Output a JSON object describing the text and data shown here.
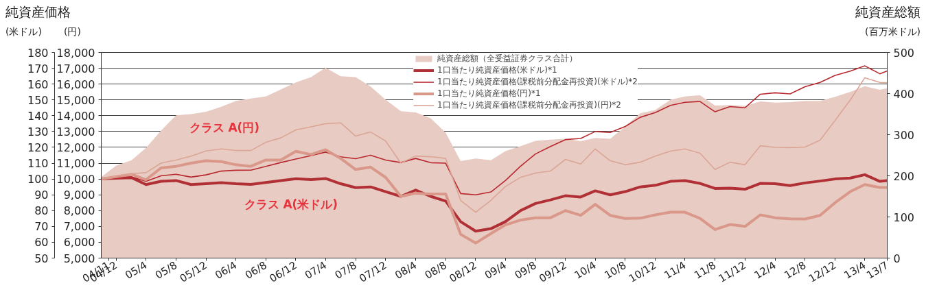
{
  "chart_data": {
    "type": "line",
    "title": "純資産価格",
    "ylabel": "(米ドル)",
    "y2label": "(円)",
    "y3label": "(百万米ドル)",
    "annotations": [
      "純資産総額",
      "クラス A(円)",
      "クラス A(米ドル)"
    ],
    "x": [
      "2004-10",
      "2004-12",
      "2005-02",
      "2005-04",
      "2005-06",
      "2005-08",
      "2005-10",
      "2005-12",
      "2006-02",
      "2006-04",
      "2006-06",
      "2006-08",
      "2006-10",
      "2006-12",
      "2007-02",
      "2007-04",
      "2007-06",
      "2007-08",
      "2007-10",
      "2007-12",
      "2008-02",
      "2008-04",
      "2008-06",
      "2008-08",
      "2008-10",
      "2008-12",
      "2009-02",
      "2009-04",
      "2009-06",
      "2009-08",
      "2009-10",
      "2009-12",
      "2010-02",
      "2010-04",
      "2010-06",
      "2010-08",
      "2010-10",
      "2010-12",
      "2011-02",
      "2011-04",
      "2011-06",
      "2011-08",
      "2011-10",
      "2011-12",
      "2012-02",
      "2012-04",
      "2012-06",
      "2012-08",
      "2012-10",
      "2012-12",
      "2013-02",
      "2013-04",
      "2013-06",
      "2013-07"
    ],
    "series": [
      {
        "name": "純資産総額（全受益証券クラス合計）",
        "type": "area",
        "axis": "y3",
        "color": "#e8cbc3",
        "values": [
          197,
          225,
          238,
          268,
          310,
          347,
          350,
          356,
          368,
          382,
          388,
          393,
          410,
          427,
          440,
          463,
          442,
          440,
          417,
          385,
          357,
          354,
          340,
          305,
          236,
          242,
          238,
          260,
          272,
          285,
          288,
          290,
          284,
          292,
          290,
          320,
          352,
          360,
          385,
          393,
          396,
          371,
          372,
          370,
          381,
          378,
          379,
          382,
          382,
          392,
          404,
          418,
          409,
          413
        ]
      },
      {
        "name": "1口当たり純資産価格(米ドル)*1",
        "color": "#b03035",
        "values": [
          100,
          100.5,
          100.8,
          96.5,
          98.5,
          99,
          96.5,
          97,
          97.7,
          97,
          96.6,
          97.8,
          99,
          100.2,
          99.6,
          100.3,
          97,
          94.5,
          95,
          92,
          89,
          93,
          89,
          86,
          73,
          67,
          68.6,
          73,
          80,
          84.5,
          86.8,
          89.4,
          88.6,
          92.5,
          90,
          92,
          95,
          96,
          98.5,
          99,
          97.2,
          94,
          94.2,
          93.5,
          97.2,
          97,
          95.8,
          97.5,
          98.7,
          100,
          100.6,
          102.7,
          98.5,
          99
        ]
      },
      {
        "name": "1口当たり純資産価格(課税前分配金再投資)(米ドル)*2",
        "color": "#b8282e",
        "values": [
          100,
          100.8,
          101.3,
          98.5,
          102,
          103,
          101.2,
          102.6,
          105,
          105.5,
          105.6,
          108,
          110.4,
          112.6,
          114.8,
          117,
          114,
          112.8,
          115,
          112,
          110.4,
          113,
          110.3,
          110,
          90.8,
          90,
          91.8,
          99,
          108,
          115.8,
          120.5,
          124.9,
          125.6,
          130,
          129.4,
          133.2,
          139,
          142,
          146.5,
          148.5,
          149,
          142.5,
          145.8,
          145,
          153.6,
          154.5,
          153.8,
          158.3,
          161,
          165.5,
          168.2,
          171.5,
          166.5,
          168.3
        ]
      },
      {
        "name": "1口当たり純資産価格(円)*1",
        "axis": "y2",
        "color": "#d9988a",
        "values": [
          10000,
          10150,
          10300,
          9950,
          10700,
          10800,
          11000,
          11150,
          11100,
          10900,
          10800,
          11200,
          11200,
          11750,
          11550,
          11850,
          11300,
          10600,
          10750,
          10100,
          8900,
          9100,
          9050,
          9050,
          6500,
          5950,
          6550,
          7100,
          7400,
          7550,
          7550,
          8000,
          7700,
          8400,
          7700,
          7500,
          7520,
          7730,
          7900,
          7900,
          7510,
          6800,
          7120,
          7000,
          7730,
          7550,
          7480,
          7470,
          7700,
          8500,
          9200,
          9650,
          9460,
          9460
        ]
      },
      {
        "name": "1口当たり純資産価格(課税前分配金再投資)(円)*2",
        "axis": "y2",
        "color": "#dba596",
        "values": [
          10000,
          10200,
          10330,
          10400,
          11000,
          11200,
          11450,
          11770,
          11900,
          11800,
          11800,
          12320,
          12600,
          13100,
          13300,
          13500,
          13550,
          12710,
          12970,
          12400,
          11000,
          11450,
          11410,
          11300,
          8650,
          7900,
          8650,
          9520,
          10100,
          10370,
          10500,
          11240,
          10950,
          11900,
          11150,
          10900,
          11060,
          11450,
          11760,
          11900,
          11630,
          10600,
          11060,
          10900,
          12100,
          12000,
          11980,
          12020,
          12450,
          13700,
          15000,
          16400,
          16100,
          16090
        ]
      }
    ],
    "xlim": [
      "2004-10",
      "2013-07"
    ],
    "xticks": [
      {
        "value": "2004-11",
        "label": "04/11"
      },
      {
        "value": "2004-12",
        "label": "04/12"
      },
      {
        "value": "2005-04",
        "label": "05/4"
      },
      {
        "value": "2005-08",
        "label": "05/8"
      },
      {
        "value": "2005-12",
        "label": "05/12"
      },
      {
        "value": "2006-04",
        "label": "06/4"
      },
      {
        "value": "2006-08",
        "label": "06/8"
      },
      {
        "value": "2006-12",
        "label": "06/12"
      },
      {
        "value": "2007-04",
        "label": "07/4"
      },
      {
        "value": "2007-08",
        "label": "07/8"
      },
      {
        "value": "2007-12",
        "label": "07/12"
      },
      {
        "value": "2008-04",
        "label": "08/4"
      },
      {
        "value": "2008-08",
        "label": "08/8"
      },
      {
        "value": "2008-12",
        "label": "08/12"
      },
      {
        "value": "2009-04",
        "label": "09/4"
      },
      {
        "value": "2009-08",
        "label": "09/8"
      },
      {
        "value": "2009-12",
        "label": "09/12"
      },
      {
        "value": "2010-04",
        "label": "10/4"
      },
      {
        "value": "2010-08",
        "label": "10/8"
      },
      {
        "value": "2010-12",
        "label": "10/12"
      },
      {
        "value": "2011-04",
        "label": "11/4"
      },
      {
        "value": "2011-08",
        "label": "11/8"
      },
      {
        "value": "2011-12",
        "label": "11/12"
      },
      {
        "value": "2012-04",
        "label": "12/4"
      },
      {
        "value": "2012-08",
        "label": "12/8"
      },
      {
        "value": "2012-12",
        "label": "12/12"
      },
      {
        "value": "2013-04",
        "label": "13/4"
      },
      {
        "value": "2013-07",
        "label": "13/7"
      }
    ],
    "ylim": [
      50,
      180
    ],
    "yticks": [
      50,
      60,
      70,
      80,
      90,
      100,
      110,
      120,
      130,
      140,
      150,
      160,
      170,
      180
    ],
    "y2lim": [
      5000,
      18000
    ],
    "y2ticks": [
      {
        "value": 5000,
        "label": "5,000"
      },
      {
        "value": 6000,
        "label": "6,000"
      },
      {
        "value": 7000,
        "label": "7,000"
      },
      {
        "value": 8000,
        "label": "8,000"
      },
      {
        "value": 9000,
        "label": "9,000"
      },
      {
        "value": 10000,
        "label": "10,000"
      },
      {
        "value": 11000,
        "label": "11,000"
      },
      {
        "value": 12000,
        "label": "12,000"
      },
      {
        "value": 13000,
        "label": "13,000"
      },
      {
        "value": 14000,
        "label": "14,000"
      },
      {
        "value": 15000,
        "label": "15,000"
      },
      {
        "value": 16000,
        "label": "16,000"
      },
      {
        "value": 17000,
        "label": "17,000"
      },
      {
        "value": 18000,
        "label": "18,000"
      }
    ],
    "y3lim": [
      0,
      500
    ],
    "y3ticks": [
      0,
      100,
      200,
      300,
      400,
      500
    ],
    "grid": "y",
    "legend": "top"
  }
}
